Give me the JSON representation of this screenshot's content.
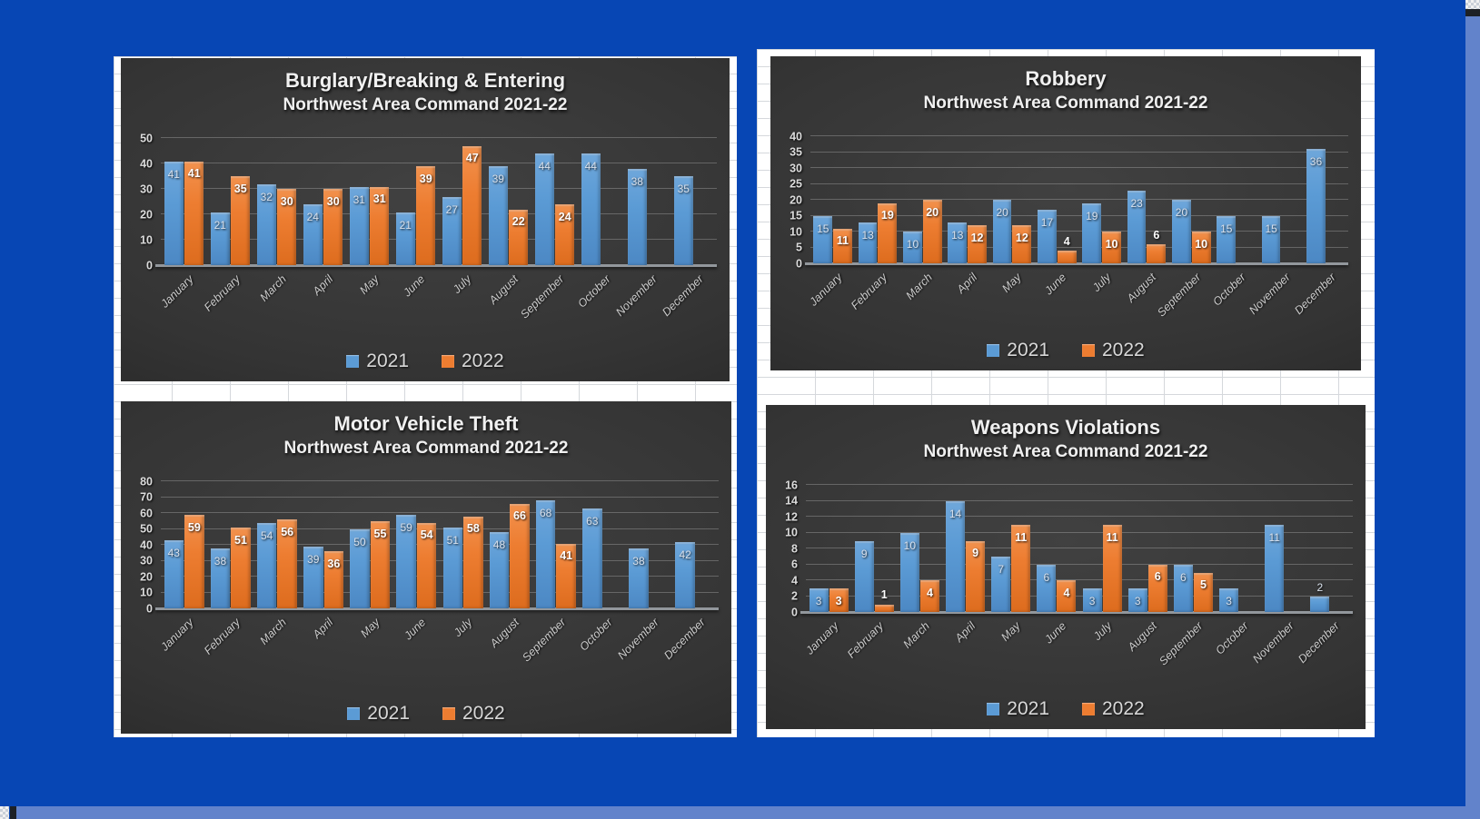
{
  "window": {
    "background_color": "#0746B4",
    "scrollbar_color": "#6283CB",
    "sheet_color": "#FFFFFF",
    "sheet_gridline_color": "#D5D8DC"
  },
  "palette": {
    "series_2021": "#5B9BD5",
    "series_2022": "#ED7D31",
    "chart_background": "#333333",
    "chart_text": "#F0F0F0"
  },
  "chart_data": [
    {
      "id": "burglary-breaking-entering",
      "type": "bar",
      "title": "Burglary/Breaking & Entering",
      "subtitle": "Northwest Area Command 2021-22",
      "ylim": [
        0,
        50
      ],
      "yticks": [
        0,
        10,
        20,
        30,
        40,
        50
      ],
      "grid": true,
      "legend_position": "bottom",
      "categories": [
        "January",
        "February",
        "March",
        "April",
        "May",
        "June",
        "July",
        "August",
        "September",
        "October",
        "November",
        "December"
      ],
      "series": [
        {
          "name": "2021",
          "color": "#5B9BD5",
          "values": [
            41,
            21,
            32,
            24,
            31,
            21,
            27,
            39,
            44,
            44,
            38,
            35
          ]
        },
        {
          "name": "2022",
          "color": "#ED7D31",
          "values": [
            41,
            35,
            30,
            30,
            31,
            39,
            47,
            22,
            24,
            null,
            null,
            null
          ]
        }
      ]
    },
    {
      "id": "robbery",
      "type": "bar",
      "title": "Robbery",
      "subtitle": "Northwest Area Command 2021-22",
      "ylim": [
        0,
        40
      ],
      "yticks": [
        0,
        5,
        10,
        15,
        20,
        25,
        30,
        35,
        40
      ],
      "grid": true,
      "legend_position": "bottom",
      "categories": [
        "January",
        "February",
        "March",
        "April",
        "May",
        "June",
        "July",
        "August",
        "September",
        "October",
        "November",
        "December"
      ],
      "series": [
        {
          "name": "2021",
          "color": "#5B9BD5",
          "values": [
            15,
            13,
            10,
            13,
            20,
            17,
            19,
            23,
            20,
            15,
            15,
            36
          ]
        },
        {
          "name": "2022",
          "color": "#ED7D31",
          "values": [
            11,
            19,
            20,
            12,
            12,
            4,
            10,
            6,
            10,
            null,
            null,
            null
          ]
        }
      ]
    },
    {
      "id": "motor-vehicle-theft",
      "type": "bar",
      "title": "Motor Vehicle Theft",
      "subtitle": "Northwest Area Command 2021-22",
      "ylim": [
        0,
        80
      ],
      "yticks": [
        0,
        10,
        20,
        30,
        40,
        50,
        60,
        70,
        80
      ],
      "grid": true,
      "legend_position": "bottom",
      "categories": [
        "January",
        "February",
        "March",
        "April",
        "May",
        "June",
        "July",
        "August",
        "September",
        "October",
        "November",
        "December"
      ],
      "series": [
        {
          "name": "2021",
          "color": "#5B9BD5",
          "values": [
            43,
            38,
            54,
            39,
            50,
            59,
            51,
            48,
            68,
            63,
            38,
            42
          ]
        },
        {
          "name": "2022",
          "color": "#ED7D31",
          "values": [
            59,
            51,
            56,
            36,
            55,
            54,
            58,
            66,
            41,
            null,
            null,
            null
          ]
        }
      ]
    },
    {
      "id": "weapons-violations",
      "type": "bar",
      "title": "Weapons Violations",
      "subtitle": "Northwest Area Command 2021-22",
      "ylim": [
        0,
        16
      ],
      "yticks": [
        0,
        2,
        4,
        6,
        8,
        10,
        12,
        14,
        16
      ],
      "grid": true,
      "legend_position": "bottom",
      "categories": [
        "January",
        "February",
        "March",
        "April",
        "May",
        "June",
        "July",
        "August",
        "September",
        "October",
        "November",
        "December"
      ],
      "series": [
        {
          "name": "2021",
          "color": "#5B9BD5",
          "values": [
            3,
            9,
            10,
            14,
            7,
            6,
            3,
            3,
            6,
            3,
            11,
            2
          ]
        },
        {
          "name": "2022",
          "color": "#ED7D31",
          "values": [
            3,
            1,
            4,
            9,
            11,
            4,
            11,
            6,
            5,
            null,
            null,
            null
          ]
        }
      ]
    }
  ]
}
